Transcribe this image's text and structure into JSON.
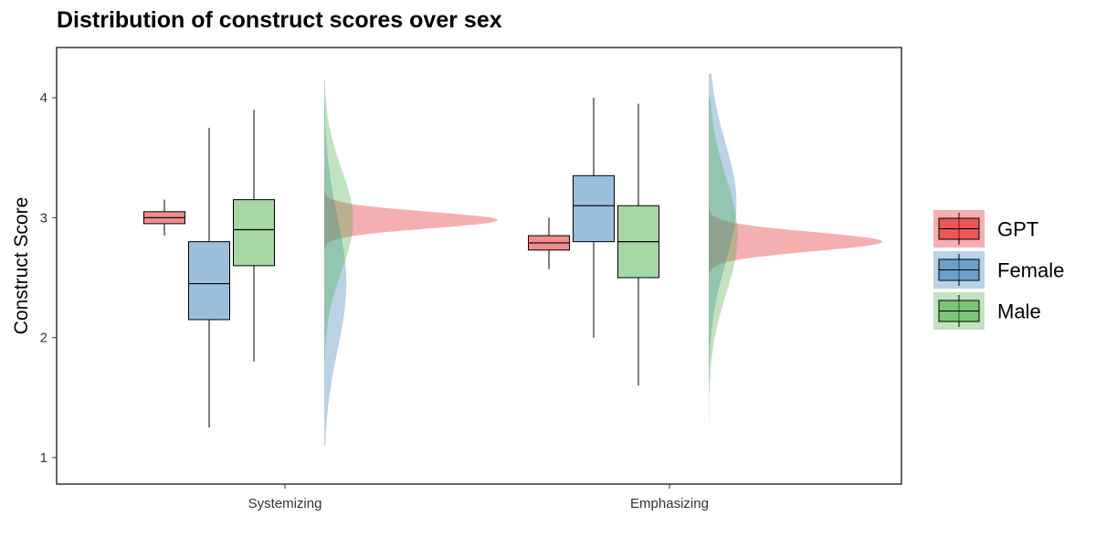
{
  "title": "Distribution of construct scores over sex",
  "chart_data": {
    "type": "boxplot_halfviolin",
    "title": "Distribution of construct scores over sex",
    "xlabel": "",
    "ylabel": "Construct Score",
    "ylim": [
      0.8,
      4.4
    ],
    "yticks": [
      1,
      2,
      3,
      4
    ],
    "categories": [
      "Systemizing",
      "Emphasizing"
    ],
    "legend_position": "right",
    "grid": false,
    "series": [
      {
        "name": "GPT",
        "color": "#E41A1C",
        "boxes": [
          {
            "category": "Systemizing",
            "min": 2.85,
            "q1": 2.95,
            "median": 3.0,
            "q3": 3.05,
            "max": 3.15
          },
          {
            "category": "Emphasizing",
            "min": 2.57,
            "q1": 2.73,
            "median": 2.79,
            "q3": 2.85,
            "max": 3.0
          }
        ],
        "density": [
          {
            "category": "Systemizing",
            "mean": 2.98,
            "sd": 0.07,
            "min": 2.6,
            "max": 3.35
          },
          {
            "category": "Emphasizing",
            "mean": 2.8,
            "sd": 0.08,
            "min": 2.45,
            "max": 3.15
          }
        ]
      },
      {
        "name": "Female",
        "color": "#377EB8",
        "boxes": [
          {
            "category": "Systemizing",
            "min": 1.25,
            "q1": 2.15,
            "median": 2.45,
            "q3": 2.8,
            "max": 3.75
          },
          {
            "category": "Emphasizing",
            "min": 2.0,
            "q1": 2.8,
            "median": 3.1,
            "q3": 3.35,
            "max": 4.0
          }
        ],
        "density": [
          {
            "category": "Systemizing",
            "mean": 2.45,
            "sd": 0.55,
            "min": 1.1,
            "max": 4.15
          },
          {
            "category": "Emphasizing",
            "mean": 3.12,
            "sd": 0.5,
            "min": 1.6,
            "max": 4.2
          }
        ]
      },
      {
        "name": "Male",
        "color": "#4DAF4A",
        "boxes": [
          {
            "category": "Systemizing",
            "min": 1.8,
            "q1": 2.6,
            "median": 2.9,
            "q3": 3.15,
            "max": 3.9
          },
          {
            "category": "Emphasizing",
            "min": 1.6,
            "q1": 2.5,
            "median": 2.8,
            "q3": 3.1,
            "max": 3.95
          }
        ],
        "density": [
          {
            "category": "Systemizing",
            "mean": 2.98,
            "sd": 0.42,
            "min": 1.6,
            "max": 4.15
          },
          {
            "category": "Emphasizing",
            "mean": 2.85,
            "sd": 0.48,
            "min": 1.15,
            "max": 4.0
          }
        ]
      }
    ]
  }
}
